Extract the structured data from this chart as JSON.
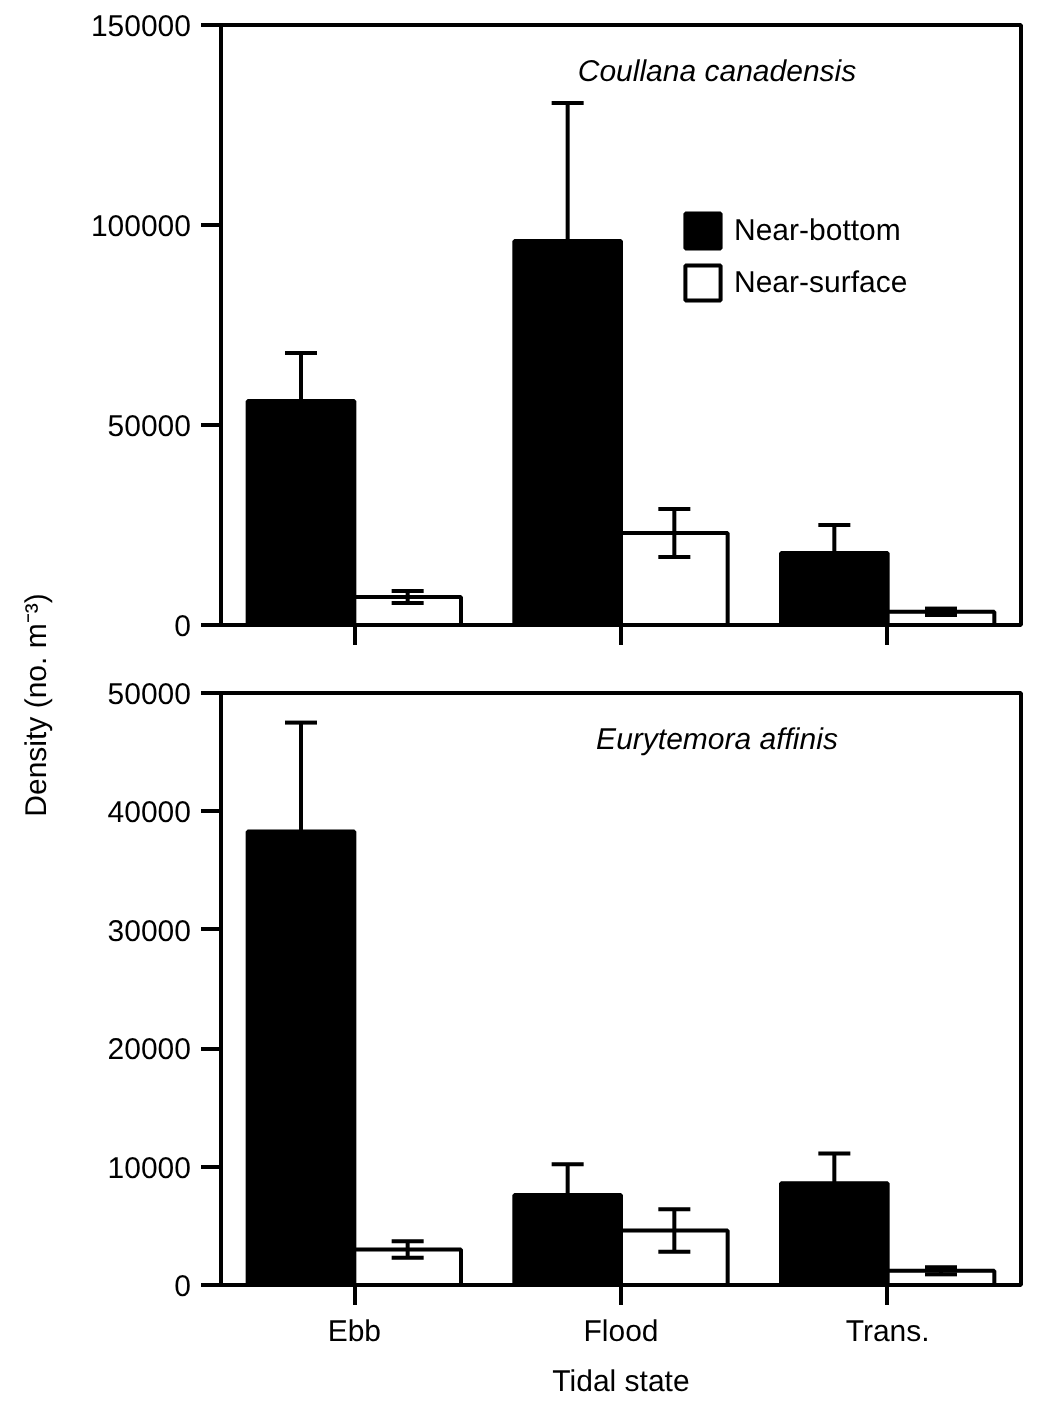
{
  "chart_data": [
    {
      "type": "bar",
      "title": "Coullana canadensis",
      "categories": [
        null,
        null,
        null
      ],
      "series": [
        {
          "name": "Near-bottom",
          "color": "#000000",
          "values": [
            56000,
            96000,
            18000
          ],
          "errors": [
            [
              56000,
              68000
            ],
            [
              96000,
              130500
            ],
            [
              18000,
              25000
            ]
          ]
        },
        {
          "name": "Near-surface",
          "color": "#ffffff",
          "values": [
            7000,
            23000,
            3300
          ],
          "errors": [
            1500,
            6000,
            800
          ]
        }
      ],
      "ylim": [
        0,
        150000
      ],
      "yticks": [
        0,
        50000,
        100000,
        150000
      ],
      "legend": "top right",
      "tick_labels": "y",
      "grid": false
    },
    {
      "type": "bar",
      "title": "Eurytemora affinis",
      "xlabel": "Tidal state",
      "ylabel": "Density (no. m⁻³)",
      "categories": [
        "Ebb",
        "Flood",
        "Trans."
      ],
      "series": [
        {
          "color": "#000000",
          "values": [
            38300,
            7600,
            8600
          ],
          "errors": [
            [
              38300,
              47500
            ],
            [
              7600,
              10200
            ],
            [
              8600,
              11100
            ]
          ]
        },
        {
          "color": "#ffffff",
          "values": [
            3000,
            4600,
            1200
          ],
          "errors": [
            700,
            1800,
            300
          ]
        }
      ],
      "ylim": [
        0,
        50000
      ],
      "yticks": [
        0,
        10000,
        20000,
        30000,
        40000,
        50000
      ],
      "grid": false
    }
  ]
}
